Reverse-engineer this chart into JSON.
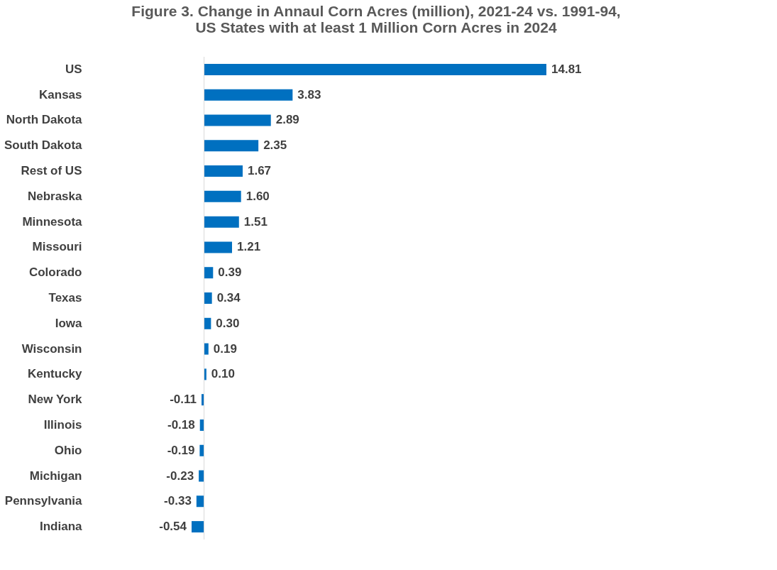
{
  "chart_data": {
    "type": "bar",
    "orientation": "horizontal",
    "title": "Figure 3.  Change in Annaul Corn Acres (million), 2021-24 vs. 1991-94,\nUS States with at least 1 Million Corn Acres in 2024",
    "categories": [
      "US",
      "Kansas",
      "North Dakota",
      "South Dakota",
      "Rest of US",
      "Nebraska",
      "Minnesota",
      "Missouri",
      "Colorado",
      "Texas",
      "Iowa",
      "Wisconsin",
      "Kentucky",
      "New York",
      "Illinois",
      "Ohio",
      "Michigan",
      "Pennsylvania",
      "Indiana"
    ],
    "values": [
      14.81,
      3.83,
      2.89,
      2.35,
      1.67,
      1.6,
      1.51,
      1.21,
      0.39,
      0.34,
      0.3,
      0.19,
      0.1,
      -0.11,
      -0.18,
      -0.19,
      -0.23,
      -0.33,
      -0.54
    ],
    "value_labels": [
      "14.81",
      "3.83",
      "2.89",
      "2.35",
      "1.67",
      "1.60",
      "1.51",
      "1.21",
      "0.39",
      "0.34",
      "0.30",
      "0.19",
      "0.10",
      "-0.11",
      "-0.18",
      "-0.19",
      "-0.23",
      "-0.33",
      "-0.54"
    ],
    "color": "#0070c0"
  }
}
